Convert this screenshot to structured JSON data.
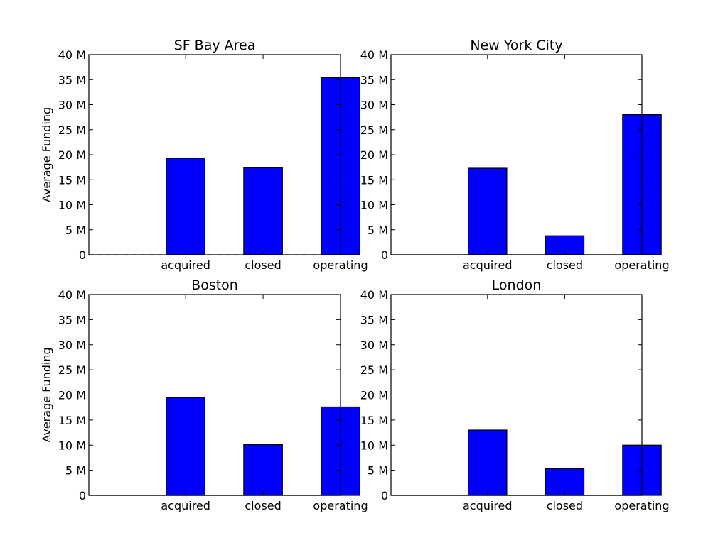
{
  "figure": {
    "background": "#ffffff"
  },
  "chart_data": [
    {
      "type": "bar",
      "title": "SF Bay Area",
      "ylabel": "Average Funding",
      "categories": [
        "acquired",
        "closed",
        "operating"
      ],
      "values": [
        19300000,
        17400000,
        35400000
      ],
      "ylim": [
        0,
        40000000
      ],
      "yticks": [
        0,
        5000000,
        10000000,
        15000000,
        20000000,
        25000000,
        30000000,
        35000000,
        40000000
      ],
      "ytick_labels": [
        "0",
        "5 M",
        "10 M",
        "15 M",
        "20 M",
        "25 M",
        "30 M",
        "35 M",
        "40 M"
      ],
      "color": "#0000ff",
      "grid": false,
      "baseline_style": "dashed"
    },
    {
      "type": "bar",
      "title": "New York City",
      "ylabel": "",
      "categories": [
        "acquired",
        "closed",
        "operating"
      ],
      "values": [
        17300000,
        3800000,
        28000000
      ],
      "ylim": [
        0,
        40000000
      ],
      "yticks": [
        0,
        5000000,
        10000000,
        15000000,
        20000000,
        25000000,
        30000000,
        35000000,
        40000000
      ],
      "ytick_labels": [
        "0",
        "5 M",
        "10 M",
        "15 M",
        "20 M",
        "25 M",
        "30 M",
        "35 M",
        "40 M"
      ],
      "color": "#0000ff",
      "grid": false,
      "baseline_style": "solid"
    },
    {
      "type": "bar",
      "title": "Boston",
      "ylabel": "Average Funding",
      "categories": [
        "acquired",
        "closed",
        "operating"
      ],
      "values": [
        19500000,
        10100000,
        17600000
      ],
      "ylim": [
        0,
        40000000
      ],
      "yticks": [
        0,
        5000000,
        10000000,
        15000000,
        20000000,
        25000000,
        30000000,
        35000000,
        40000000
      ],
      "ytick_labels": [
        "0",
        "5 M",
        "10 M",
        "15 M",
        "20 M",
        "25 M",
        "30 M",
        "35 M",
        "40 M"
      ],
      "color": "#0000ff",
      "grid": false,
      "baseline_style": "solid"
    },
    {
      "type": "bar",
      "title": "London",
      "ylabel": "",
      "categories": [
        "acquired",
        "closed",
        "operating"
      ],
      "values": [
        13000000,
        5300000,
        10000000
      ],
      "ylim": [
        0,
        40000000
      ],
      "yticks": [
        0,
        5000000,
        10000000,
        15000000,
        20000000,
        25000000,
        30000000,
        35000000,
        40000000
      ],
      "ytick_labels": [
        "0",
        "5 M",
        "10 M",
        "15 M",
        "20 M",
        "25 M",
        "30 M",
        "35 M",
        "40 M"
      ],
      "color": "#0000ff",
      "grid": false,
      "baseline_style": "solid"
    }
  ]
}
